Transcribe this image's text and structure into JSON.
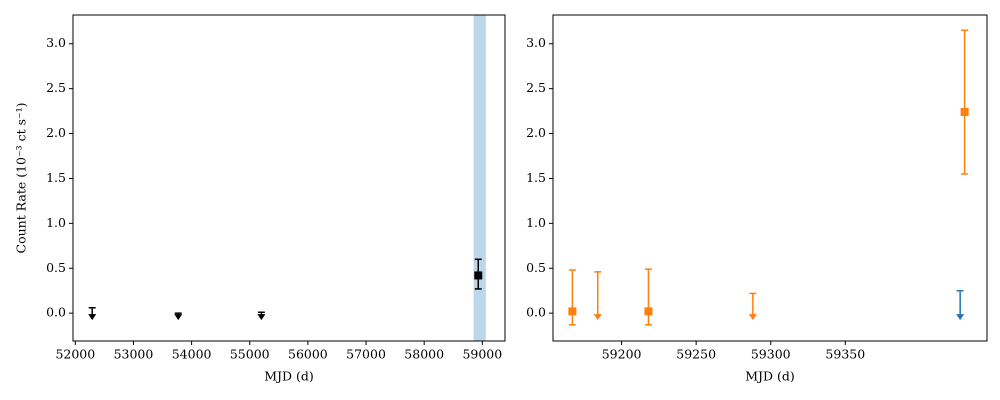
{
  "chart_data": [
    {
      "type": "errorbar",
      "ylabel": "Count Rate (10⁻³ ct s⁻¹)",
      "xlabel": "MJD (d)",
      "xlim": [
        51960,
        59390
      ],
      "xticks": [
        52000,
        53000,
        54000,
        55000,
        56000,
        57000,
        58000,
        59000
      ],
      "ylim": [
        -0.31,
        3.32
      ],
      "yticks": [
        {
          "value": 0,
          "label": "0.0"
        },
        0.5,
        {
          "value": 1,
          "label": "1.0"
        },
        1.5,
        {
          "value": 2,
          "label": "2.0"
        },
        2.5,
        {
          "value": 3,
          "label": "3.0"
        }
      ],
      "shade": {
        "xmin": 58850,
        "xmax": 59060,
        "color": "#bcd7ec"
      },
      "series": [
        {
          "kind": "upper_limit",
          "color": "#000000",
          "x": [
            52290,
            53770,
            55200
          ],
          "values": [
            0.06,
            0.0,
            0.01
          ]
        },
        {
          "kind": "detection",
          "color": "#000000",
          "x": [
            58930
          ],
          "values": [
            0.42
          ],
          "yerr_minus": [
            0.15
          ],
          "yerr_plus": [
            0.18
          ]
        }
      ]
    },
    {
      "type": "errorbar",
      "xlabel": "MJD (d)",
      "xlim": [
        59154,
        59445
      ],
      "xticks": [
        59200,
        59250,
        59300,
        59350
      ],
      "ylim": [
        -0.31,
        3.32
      ],
      "yticks": [
        {
          "value": 0,
          "label": "0.0"
        },
        0.5,
        {
          "value": 1,
          "label": "1.0"
        },
        1.5,
        {
          "value": 2,
          "label": "2.0"
        },
        2.5,
        {
          "value": 3,
          "label": "3.0"
        }
      ],
      "series": [
        {
          "kind": "detection",
          "color": "#ff7f0e",
          "x": [
            59167,
            59218,
            59430
          ],
          "values": [
            0.02,
            0.02,
            2.24
          ],
          "yerr_minus": [
            0.15,
            0.15,
            0.69
          ],
          "yerr_plus": [
            0.46,
            0.47,
            0.91
          ]
        },
        {
          "kind": "upper_limit",
          "color": "#ff7f0e",
          "x": [
            59184,
            59288
          ],
          "values": [
            0.46,
            0.22
          ]
        },
        {
          "kind": "upper_limit",
          "color": "#1f77b4",
          "x": [
            59427
          ],
          "values": [
            0.25
          ]
        }
      ]
    }
  ]
}
